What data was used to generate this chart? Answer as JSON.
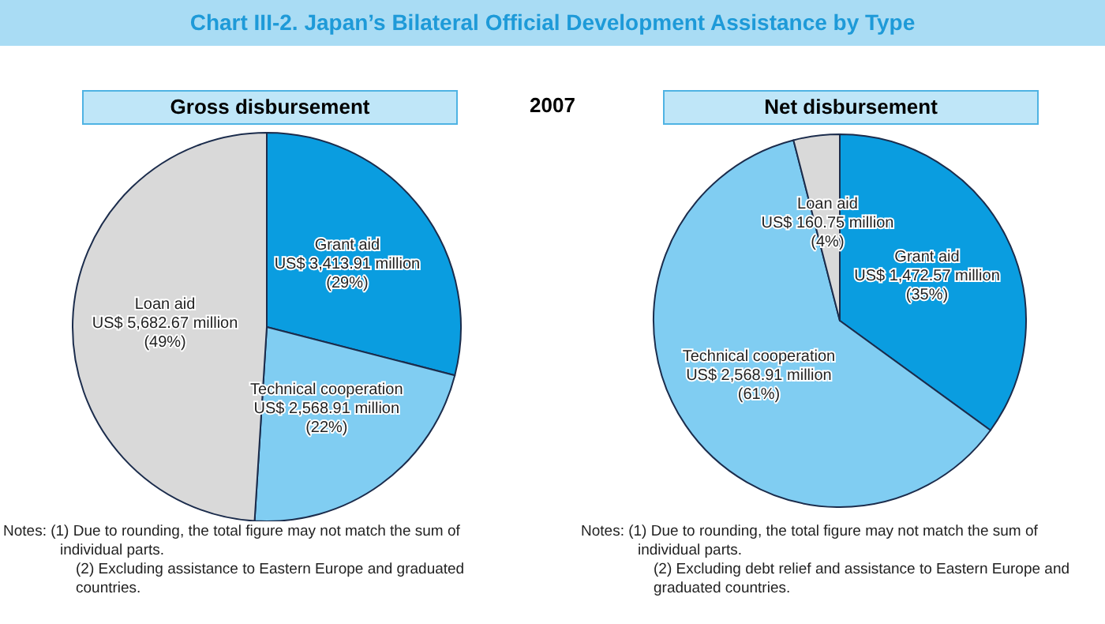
{
  "chart_data": [
    {
      "type": "pie",
      "title": "Chart III-2. Japan’s Bilateral Official Development Assistance by Type",
      "subtitle": "Gross disbursement",
      "categories": [
        "Grant aid",
        "Technical cooperation",
        "Loan aid"
      ],
      "values": [
        29,
        22,
        49
      ],
      "value_labels": [
        "US$ 3,413.91 million\n(29%)",
        "US$ 2,568.91 million\n(22%)",
        "US$ 5,682.67 million\n(49%)"
      ],
      "colors": [
        "#0a9de0",
        "#80cdf2",
        "#d9d9d9"
      ],
      "annotations": [
        "2007",
        "Notes: (1) Due to rounding, the total figure may not match the sum of individual parts.",
        "(2) Excluding assistance to Eastern Europe and graduated countries."
      ]
    },
    {
      "type": "pie",
      "title": "Net disbursement",
      "categories": [
        "Grant aid",
        "Technical cooperation",
        "Loan aid"
      ],
      "values": [
        35,
        61,
        4
      ],
      "value_labels": [
        "US$ 1,472.57 million\n(35%)",
        "US$ 2,568.91 million\n(61%)",
        "US$ 160.75 million\n(4%)"
      ],
      "colors": [
        "#0a9de0",
        "#80cdf2",
        "#d9d9d9"
      ],
      "annotations": [
        "Notes: (1) Due to rounding, the total figure may not match the sum of individual parts.",
        "(2) Excluding debt relief and assistance to Eastern Europe and graduated countries."
      ]
    }
  ]
}
